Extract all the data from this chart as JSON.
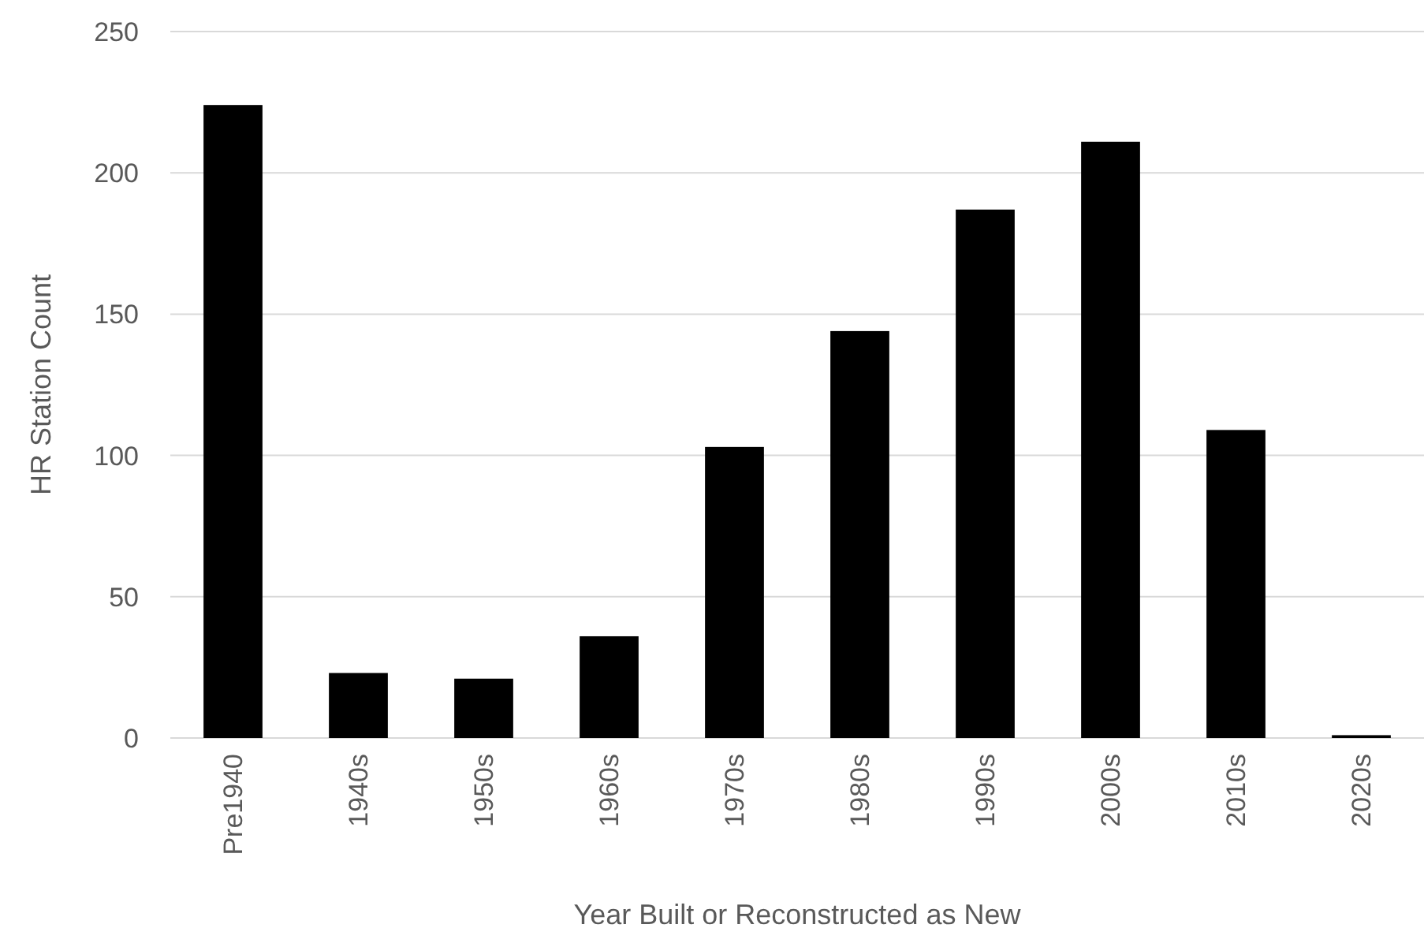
{
  "chart_data": {
    "type": "bar",
    "xlabel": "Year Built or Reconstructed as New",
    "ylabel": "HR Station Count",
    "categories": [
      "Pre1940",
      "1940s",
      "1950s",
      "1960s",
      "1970s",
      "1980s",
      "1990s",
      "2000s",
      "2010s",
      "2020s"
    ],
    "values": [
      224,
      23,
      21,
      36,
      103,
      144,
      187,
      211,
      109,
      1
    ],
    "color": "#000000",
    "ylim": [
      0,
      250
    ],
    "yticks": [
      0,
      50,
      100,
      150,
      200,
      250
    ],
    "grid": "y"
  }
}
